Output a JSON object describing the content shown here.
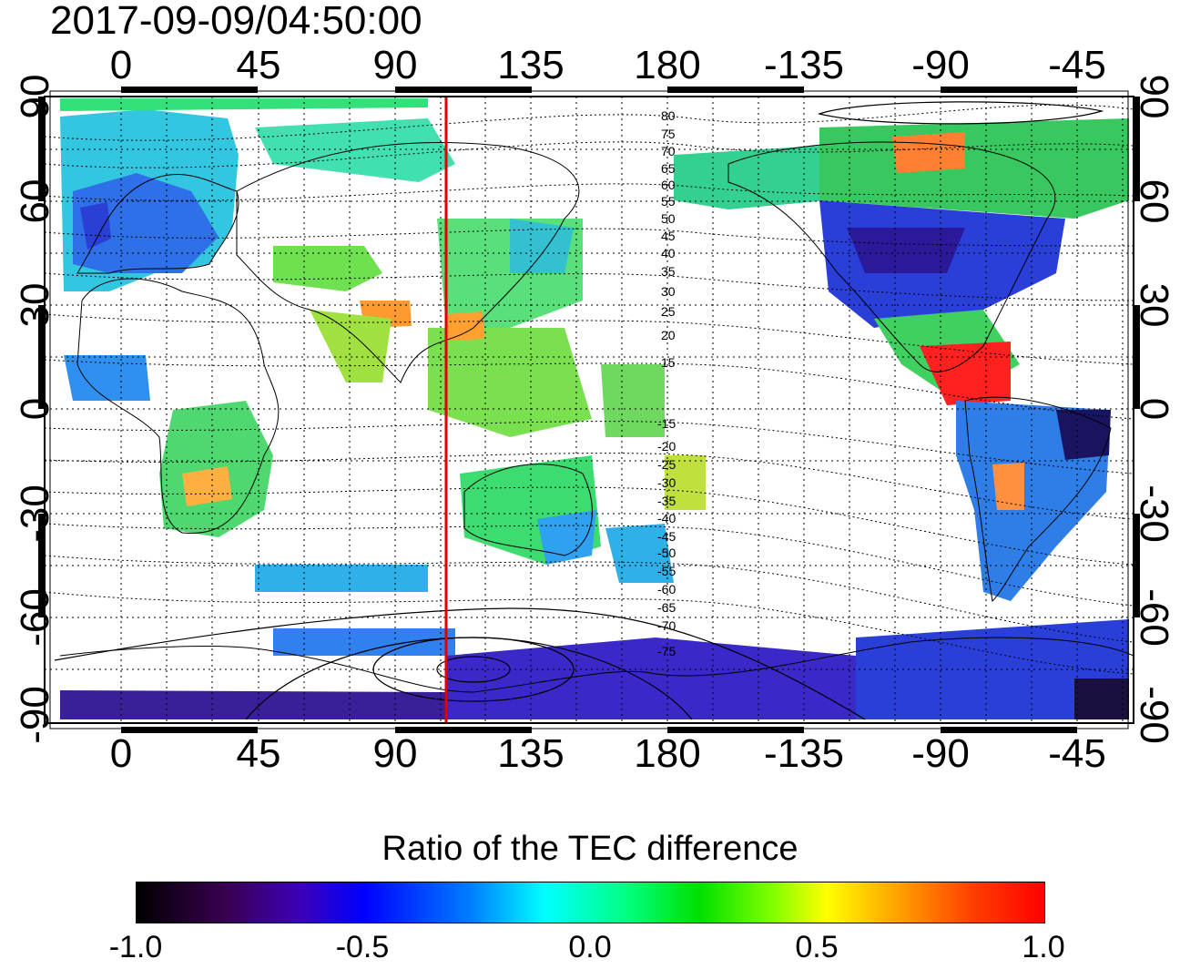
{
  "timestamp": "2017-09-09/04:50:00",
  "top_lon_labels": [
    "0",
    "45",
    "90",
    "135",
    "180",
    "-135",
    "-90",
    "-45"
  ],
  "bottom_lon_labels": [
    "0",
    "45",
    "90",
    "135",
    "180",
    "-135",
    "-90",
    "-45"
  ],
  "left_lat_labels": [
    "90",
    "60",
    "30",
    "0",
    "-30",
    "-60",
    "-90"
  ],
  "right_lat_labels": [
    "90",
    "60",
    "30",
    "0",
    "-30",
    "-60",
    "-90"
  ],
  "contour_labels_north": [
    "80",
    "75",
    "70",
    "65",
    "60",
    "55",
    "50",
    "45",
    "40",
    "35",
    "30",
    "25",
    "20",
    "15"
  ],
  "contour_labels_south": [
    "-15",
    "-20",
    "-25",
    "-30",
    "-35",
    "-40",
    "-45",
    "-50",
    "-55",
    "-60",
    "-65",
    "-70",
    "-75"
  ],
  "colorbar": {
    "title": "Ratio of the TEC difference",
    "ticks": [
      "-1.0",
      "-0.5",
      "0.0",
      "0.5",
      "1.0"
    ],
    "colors": [
      "#000000",
      "#3c00b8",
      "#0000ff",
      "#00ffff",
      "#00e000",
      "#ffff00",
      "#ff0000"
    ]
  },
  "marker_line": {
    "longitude": 108,
    "color": "#e00000"
  }
}
